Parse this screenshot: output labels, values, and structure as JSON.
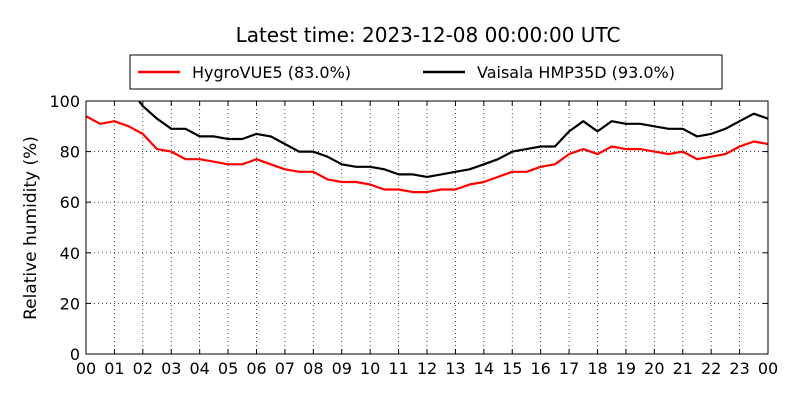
{
  "chart_data": {
    "type": "line",
    "title": "Latest time: 2023-12-08 00:00:00 UTC",
    "xlabel": "",
    "ylabel": "Relative humidity (%)",
    "x_unit": "hour of day (UTC)",
    "xlim": [
      0,
      24
    ],
    "ylim": [
      0,
      100
    ],
    "x_tick_labels": [
      "00",
      "01",
      "02",
      "03",
      "04",
      "05",
      "06",
      "07",
      "08",
      "09",
      "10",
      "11",
      "12",
      "13",
      "14",
      "15",
      "16",
      "17",
      "18",
      "19",
      "20",
      "21",
      "22",
      "23",
      "00"
    ],
    "y_tick_values": [
      0,
      20,
      40,
      60,
      80,
      100
    ],
    "grid": true,
    "legend_placement": "top-center",
    "x": [
      0,
      0.5,
      1,
      1.5,
      2,
      2.5,
      3,
      3.5,
      4,
      4.5,
      5,
      5.5,
      6,
      6.5,
      7,
      7.5,
      8,
      8.5,
      9,
      9.5,
      10,
      10.5,
      11,
      11.5,
      12,
      12.5,
      13,
      13.5,
      14,
      14.5,
      15,
      15.5,
      16,
      16.5,
      17,
      17.5,
      18,
      18.5,
      19,
      19.5,
      20,
      20.5,
      21,
      21.5,
      22,
      22.5,
      23,
      23.5,
      24
    ],
    "series": [
      {
        "name": "HygroVUE5 (83.0%)",
        "color": "#ff0000",
        "values": [
          94,
          91,
          92,
          90,
          87,
          81,
          80,
          77,
          77,
          76,
          75,
          75,
          77,
          75,
          73,
          72,
          72,
          69,
          68,
          68,
          67,
          65,
          65,
          64,
          64,
          65,
          65,
          67,
          68,
          70,
          72,
          72,
          74,
          75,
          79,
          81,
          79,
          82,
          81,
          81,
          80,
          79,
          80,
          77,
          78,
          79,
          82,
          84,
          83
        ]
      },
      {
        "name": "Vaisala HMP35D (93.0%)",
        "color": "#000000",
        "values": [
          null,
          null,
          null,
          null,
          98,
          93,
          89,
          89,
          86,
          86,
          85,
          85,
          87,
          86,
          83,
          80,
          80,
          78,
          75,
          74,
          74,
          73,
          71,
          71,
          70,
          71,
          72,
          73,
          75,
          77,
          80,
          81,
          82,
          82,
          88,
          92,
          88,
          92,
          91,
          91,
          90,
          89,
          89,
          86,
          87,
          89,
          92,
          95,
          93
        ]
      }
    ]
  },
  "colors": {
    "background": "#ffffff",
    "axes": "#000000",
    "grid": "#000000"
  }
}
